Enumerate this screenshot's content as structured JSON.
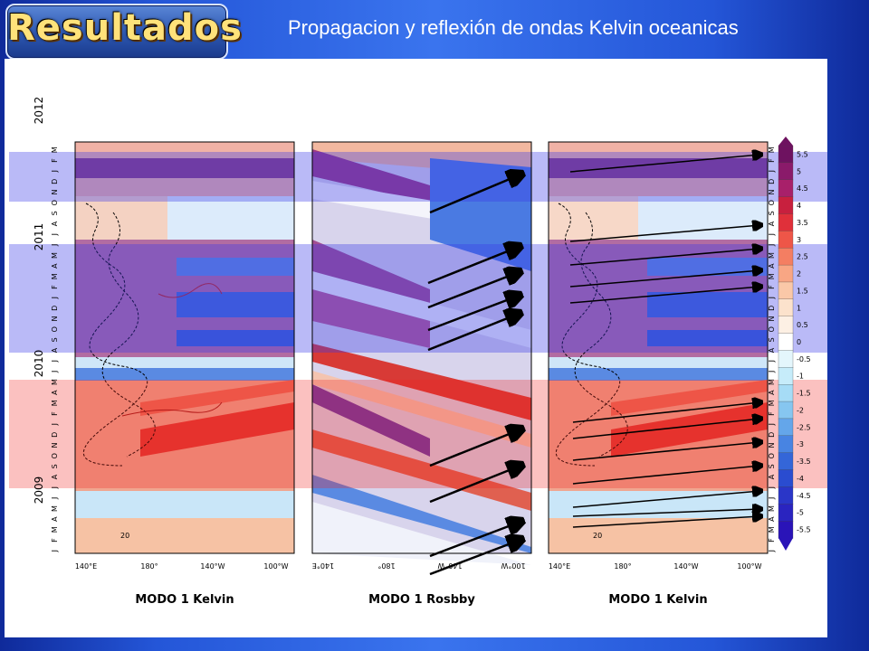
{
  "header": {
    "title": "Resultados",
    "subtitle": "Propagacion y reflexión de ondas Kelvin oceanicas"
  },
  "figure": {
    "years": [
      "2009",
      "2010",
      "2011",
      "2012"
    ],
    "month_letters": [
      "J",
      "F",
      "M",
      "A",
      "M",
      "J",
      "J",
      "A",
      "S",
      "O",
      "N",
      "D",
      "J",
      "F",
      "M",
      "A",
      "M",
      "J",
      "J",
      "A",
      "S",
      "O",
      "N",
      "D",
      "J",
      "F",
      "M",
      "A",
      "M",
      "J",
      "J",
      "A",
      "S",
      "O",
      "N",
      "D",
      "J",
      "F",
      "M"
    ],
    "panels": [
      {
        "caption": "MODO 1 Kelvin",
        "xticks": [
          "140°E",
          "180°",
          "140°W",
          "100°W"
        ]
      },
      {
        "caption": "MODO 1 Rosbby",
        "xticks": [
          "140°E",
          "180°",
          "140°W",
          "100°W"
        ]
      },
      {
        "caption": "MODO 1 Kelvin",
        "xticks": [
          "140°E",
          "180°",
          "140°W",
          "100°W"
        ]
      }
    ],
    "colorbar": {
      "labels": [
        "5.5",
        "5",
        "4.5",
        "4",
        "3.5",
        "3",
        "2.5",
        "2",
        "1.5",
        "1",
        "0.5",
        "0",
        "-0.5",
        "-1",
        "-1.5",
        "-2",
        "-2.5",
        "-3",
        "-3.5",
        "-4",
        "-4.5",
        "-5",
        "-5.5"
      ],
      "colors": [
        "#6e1260",
        "#8a1a6a",
        "#a8206a",
        "#c8203e",
        "#e0303a",
        "#ee5648",
        "#f47e62",
        "#f8a684",
        "#fac8a8",
        "#fce2cc",
        "#fdf0e4",
        "#ffffff",
        "#e4f6fc",
        "#c6ecfa",
        "#a6dcf6",
        "#86c6f0",
        "#64a6ea",
        "#4884e2",
        "#3466d8",
        "#2a4cd0",
        "#2a36c8",
        "#2a24c0",
        "#2a14b8"
      ]
    },
    "contour_label": "20"
  }
}
